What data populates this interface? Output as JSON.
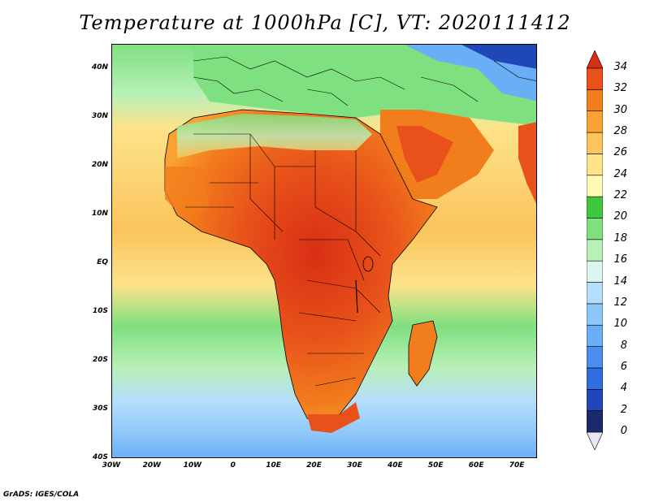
{
  "title": "Temperature at 1000hPa [C], VT: 2020111412",
  "footer": "GrADS: IGES/COLA",
  "map": {
    "lon_range": [
      -30,
      75
    ],
    "lat_range": [
      -40,
      45
    ],
    "lat_ticks": [
      {
        "value": 40,
        "label": "40N"
      },
      {
        "value": 30,
        "label": "30N"
      },
      {
        "value": 20,
        "label": "20N"
      },
      {
        "value": 10,
        "label": "10N"
      },
      {
        "value": 0,
        "label": "EQ"
      },
      {
        "value": -10,
        "label": "10S"
      },
      {
        "value": -20,
        "label": "20S"
      },
      {
        "value": -30,
        "label": "30S"
      },
      {
        "value": -40,
        "label": "40S"
      }
    ],
    "lon_ticks": [
      {
        "value": -30,
        "label": "30W"
      },
      {
        "value": -20,
        "label": "20W"
      },
      {
        "value": -10,
        "label": "10W"
      },
      {
        "value": 0,
        "label": "0"
      },
      {
        "value": 10,
        "label": "10E"
      },
      {
        "value": 20,
        "label": "20E"
      },
      {
        "value": 30,
        "label": "30E"
      },
      {
        "value": 40,
        "label": "40E"
      },
      {
        "value": 50,
        "label": "50E"
      },
      {
        "value": 60,
        "label": "60E"
      },
      {
        "value": 70,
        "label": "70E"
      }
    ]
  },
  "colorbar": {
    "levels": [
      "0",
      "2",
      "4",
      "6",
      "8",
      "10",
      "12",
      "14",
      "16",
      "18",
      "20",
      "22",
      "24",
      "26",
      "28",
      "30",
      "32",
      "34"
    ],
    "colors": [
      "#1a2a6c",
      "#1f47b8",
      "#2f6fe0",
      "#4a8fef",
      "#6aaef5",
      "#8ec7fa",
      "#b4defc",
      "#dcf5f0",
      "#b8f0b8",
      "#7fe07f",
      "#3ec83e",
      "#fffab5",
      "#fde38a",
      "#fbc45c",
      "#f9a233",
      "#f27d1d",
      "#e8521a",
      "#d82e14"
    ],
    "arrow_low_color": "#e6e6f5",
    "arrow_high_color": "#d82e14"
  },
  "colors": {
    "ocean_cold": "#6aaef5",
    "ocean_mid": "#b4defc",
    "ocean_warm": "#fde38a",
    "land_hot": "#e8521a",
    "land_warm": "#f9a233",
    "med": "#7fe07f",
    "cold_dark": "#1f47b8"
  }
}
